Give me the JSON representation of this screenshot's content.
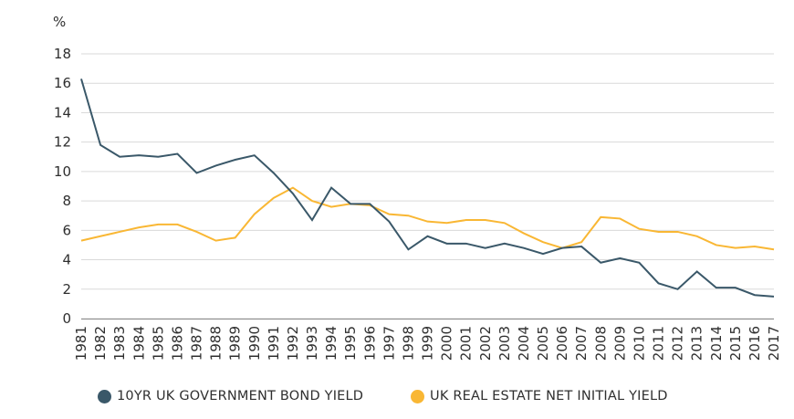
{
  "colors": {
    "bond": "#3a5869",
    "property": "#f9b734",
    "grid": "#d9d9d9",
    "axis": "#2f2f2f"
  },
  "chart_data": {
    "type": "line",
    "unit_label": "%",
    "xlabel": "",
    "ylabel": "",
    "ylim": [
      0,
      18
    ],
    "yticks": [
      0,
      2,
      4,
      6,
      8,
      10,
      12,
      14,
      16,
      18
    ],
    "grid": true,
    "legend_position": "bottom",
    "x": [
      "1981",
      "1982",
      "1983",
      "1984",
      "1985",
      "1986",
      "1987",
      "1988",
      "1989",
      "1990",
      "1991",
      "1992",
      "1993",
      "1994",
      "1995",
      "1996",
      "1997",
      "1998",
      "1999",
      "2000",
      "2001",
      "2002",
      "2003",
      "2004",
      "2005",
      "2006",
      "2007",
      "2008",
      "2009",
      "2010",
      "2011",
      "2012",
      "2013",
      "2014",
      "2015",
      "2016",
      "2017"
    ],
    "series": [
      {
        "name": "10YR UK GOVERNMENT BOND YIELD",
        "color_key": "bond",
        "values": [
          16.3,
          11.8,
          11.0,
          11.1,
          11.0,
          11.2,
          9.9,
          10.4,
          10.8,
          11.1,
          9.9,
          8.5,
          6.7,
          8.9,
          7.8,
          7.8,
          6.6,
          4.7,
          5.6,
          5.1,
          5.1,
          4.8,
          5.1,
          4.8,
          4.4,
          4.8,
          4.9,
          3.8,
          4.1,
          3.8,
          2.4,
          2.0,
          3.2,
          2.1,
          2.1,
          1.6,
          1.5
        ]
      },
      {
        "name": "UK REAL ESTATE NET INITIAL YIELD",
        "color_key": "property",
        "values": [
          5.3,
          5.6,
          5.9,
          6.2,
          6.4,
          6.4,
          5.9,
          5.3,
          5.5,
          7.1,
          8.2,
          8.9,
          8.0,
          7.6,
          7.8,
          7.7,
          7.1,
          7.0,
          6.6,
          6.5,
          6.7,
          6.7,
          6.5,
          5.8,
          5.2,
          4.8,
          5.2,
          6.9,
          6.8,
          6.1,
          5.9,
          5.9,
          5.6,
          5.0,
          4.8,
          4.9,
          4.7
        ]
      }
    ]
  }
}
